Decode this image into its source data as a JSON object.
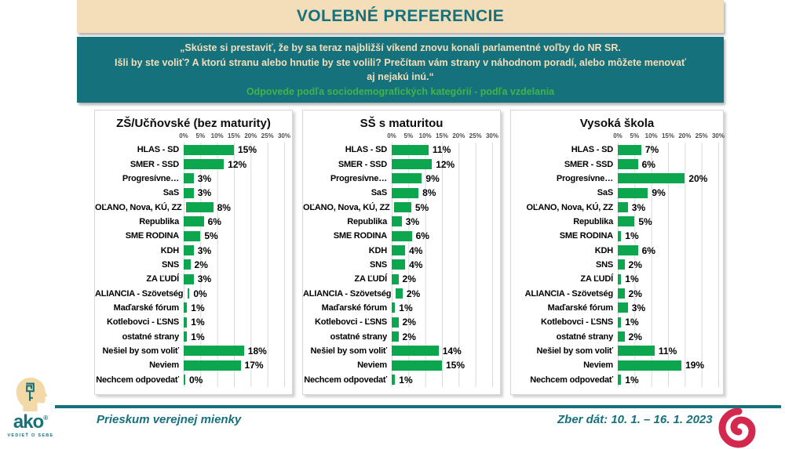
{
  "header": {
    "title": "VOLEBNÉ PREFERENCIE"
  },
  "question_box": {
    "line1": "„Skúste si prestaviť, že by sa teraz najbližší víkend znovu konali parlamentné voľby do NR SR.",
    "line2": "Išli by ste voliť? A ktorú stranu alebo hnutie by ste volili? Prečítam vám strany v náhodnom poradí, alebo môžete menovať",
    "line3": "aj nejakú inú.“",
    "subtitle": "Odpovede podľa sociodemografických kategórií - podľa vzdelania"
  },
  "chart_data": [
    {
      "type": "bar",
      "orientation": "horizontal",
      "title": "ZŠ/Učňovské (bez maturity)",
      "unit": "%",
      "xlim": [
        0,
        30
      ],
      "axis_ticks": [
        "0%",
        "5%",
        "10%",
        "15%",
        "20%",
        "25%",
        "30%"
      ],
      "grid": true,
      "categories": [
        "HLAS - SD",
        "SMER - SSD",
        "Progresívne…",
        "SaS",
        "OĽANO, Nova, KÚ, ZZ",
        "Republika",
        "SME RODINA",
        "KDH",
        "SNS",
        "ZA ĽUDÍ",
        "ALIANCIA - Szövetség",
        "Maďarské fórum",
        "Kotlebovci - ĽSNS",
        "ostatné strany",
        "Nešiel by som voliť",
        "Neviem",
        "Nechcem odpovedať"
      ],
      "values": [
        15,
        12,
        3,
        3,
        8,
        6,
        5,
        3,
        2,
        3,
        0,
        1,
        1,
        1,
        18,
        17,
        0
      ]
    },
    {
      "type": "bar",
      "orientation": "horizontal",
      "title": "SŠ s maturitou",
      "unit": "%",
      "xlim": [
        0,
        30
      ],
      "axis_ticks": [
        "0%",
        "5%",
        "10%",
        "15%",
        "20%",
        "25%",
        "30%"
      ],
      "grid": true,
      "categories": [
        "HLAS - SD",
        "SMER - SSD",
        "Progresívne…",
        "SaS",
        "OĽANO, Nova, KÚ, ZZ",
        "Republika",
        "SME RODINA",
        "KDH",
        "SNS",
        "ZA ĽUDÍ",
        "ALIANCIA - Szövetség",
        "Maďarské fórum",
        "Kotlebovci - ĽSNS",
        "ostatné strany",
        "Nešiel by som voliť",
        "Neviem",
        "Nechcem odpovedať"
      ],
      "values": [
        11,
        12,
        9,
        8,
        5,
        3,
        6,
        4,
        4,
        2,
        2,
        1,
        2,
        2,
        14,
        15,
        1
      ]
    },
    {
      "type": "bar",
      "orientation": "horizontal",
      "title": "Vysoká škola",
      "unit": "%",
      "xlim": [
        0,
        30
      ],
      "axis_ticks": [
        "0%",
        "5%",
        "10%",
        "15%",
        "20%",
        "25%",
        "30%"
      ],
      "grid": true,
      "categories": [
        "HLAS - SD",
        "SMER - SSD",
        "Progresívne…",
        "SaS",
        "OĽANO, Nova, KÚ, ZZ",
        "Republika",
        "SME RODINA",
        "KDH",
        "SNS",
        "ZA ĽUDÍ",
        "ALIANCIA - Szövetség",
        "Maďarské fórum",
        "Kotlebovci - ĽSNS",
        "ostatné strany",
        "Nešiel by som voliť",
        "Neviem",
        "Nechcem odpovedať"
      ],
      "values": [
        7,
        6,
        20,
        9,
        3,
        5,
        1,
        6,
        2,
        1,
        2,
        3,
        1,
        2,
        11,
        19,
        1
      ]
    }
  ],
  "footer": {
    "logo": {
      "text": "ako",
      "registered": "®",
      "tagline": "VEDIEŤ O SEBE"
    },
    "left_text": "Prieskum verejnej mienky",
    "right_text": "Zber dát: 10. 1. – 16. 1. 2023"
  },
  "colors": {
    "teal": "#15717C",
    "cream": "#F4DEBA",
    "subtitle_green": "#3FB548",
    "bar_green": "#0CA64F",
    "gridline": "#D9D9D9",
    "logo_red": "#D3294E"
  }
}
